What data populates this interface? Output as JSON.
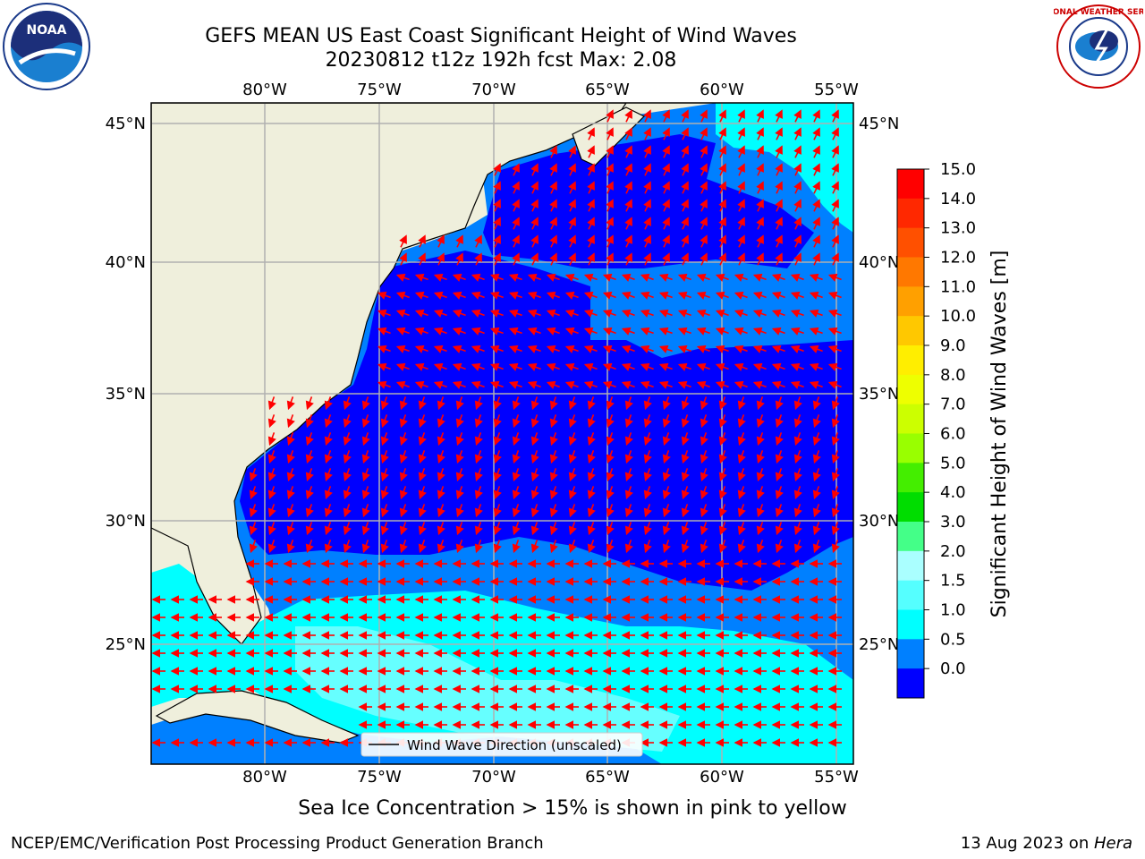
{
  "header": {
    "title_line1": "GEFS MEAN US East Coast Significant Height of Wind Waves",
    "title_line2": "20230812 t12z 192h fcst   Max: 2.08"
  },
  "logos": {
    "left": "NOAA",
    "right_text": "NATIONAL WEATHER SERVICE"
  },
  "map": {
    "lon_labels": [
      "80°W",
      "75°W",
      "70°W",
      "65°W",
      "60°W",
      "55°W"
    ],
    "lat_labels": [
      "45°N",
      "40°N",
      "35°N",
      "30°N",
      "25°N"
    ],
    "legend_label": "Wind Wave Direction (unscaled)"
  },
  "colorbar": {
    "label": "Significant Height of Wind Waves [m]",
    "ticks": [
      "15.0",
      "14.0",
      "13.0",
      "12.0",
      "11.0",
      "10.0",
      "9.0",
      "8.0",
      "7.0",
      "6.0",
      "5.0",
      "4.0",
      "3.0",
      "2.0",
      "1.5",
      "1.0",
      "0.5",
      "0.0"
    ],
    "colors": [
      "#ff0000",
      "#ff2800",
      "#ff5000",
      "#ff7800",
      "#ffa000",
      "#ffc800",
      "#ffee00",
      "#eeff00",
      "#ccff00",
      "#99ff00",
      "#44ee00",
      "#00dd00",
      "#44ff88",
      "#aaffff",
      "#55ffff",
      "#00ffff",
      "#0080ff",
      "#0000ff"
    ]
  },
  "note": "Sea Ice Concentration > 15% is shown in pink to yellow",
  "footer": {
    "left": "NCEP/EMC/Verification Post Processing Product Generation Branch",
    "right_prefix": "13 Aug 2023 on ",
    "right_host": "Hera"
  }
}
